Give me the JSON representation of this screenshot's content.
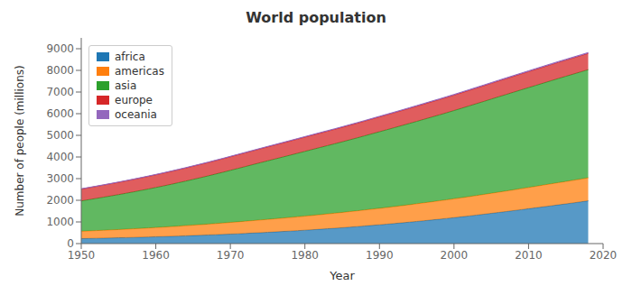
{
  "chart_data": {
    "type": "area",
    "title": "World population",
    "x_label": "Year",
    "y_label": "Number of people (millions)",
    "x": [
      1950,
      1951,
      1952,
      1953,
      1954,
      1955,
      1956,
      1957,
      1958,
      1959,
      1960,
      1961,
      1962,
      1963,
      1964,
      1965,
      1966,
      1967,
      1968,
      1969,
      1970,
      1971,
      1972,
      1973,
      1974,
      1975,
      1976,
      1977,
      1978,
      1979,
      1980,
      1981,
      1982,
      1983,
      1984,
      1985,
      1986,
      1987,
      1988,
      1989,
      1990,
      1991,
      1992,
      1993,
      1994,
      1995,
      1996,
      1997,
      1998,
      1999,
      2000,
      2001,
      2002,
      2003,
      2004,
      2005,
      2006,
      2007,
      2008,
      2009,
      2010,
      2011,
      2012,
      2013,
      2014,
      2015,
      2016,
      2017,
      2018
    ],
    "series": [
      {
        "name": "africa",
        "color": "#1f77b4",
        "values": [
          229,
          237,
          244,
          252,
          260,
          268,
          276,
          285,
          294,
          304,
          314,
          324,
          335,
          346,
          358,
          370,
          383,
          396,
          409,
          423,
          438,
          453,
          469,
          486,
          503,
          521,
          539,
          558,
          577,
          597,
          618,
          640,
          662,
          685,
          708,
          733,
          759,
          785,
          812,
          840,
          868,
          897,
          927,
          958,
          990,
          1023,
          1056,
          1090,
          1125,
          1161,
          1198,
          1236,
          1275,
          1315,
          1355,
          1396,
          1438,
          1480,
          1523,
          1566,
          1610,
          1654,
          1699,
          1743,
          1788,
          1833,
          1880,
          1927,
          1975
        ]
      },
      {
        "name": "americas",
        "color": "#ff7f0e",
        "values": [
          339,
          347,
          355,
          363,
          371,
          380,
          389,
          398,
          408,
          418,
          428,
          439,
          449,
          460,
          471,
          483,
          494,
          505,
          517,
          528,
          540,
          552,
          563,
          575,
          586,
          597,
          608,
          619,
          630,
          641,
          652,
          663,
          674,
          685,
          695,
          706,
          717,
          728,
          740,
          751,
          762,
          773,
          784,
          795,
          806,
          817,
          828,
          839,
          850,
          861,
          872,
          883,
          894,
          905,
          916,
          927,
          938,
          949,
          961,
          972,
          983,
          994,
          1005,
          1016,
          1027,
          1036,
          1045,
          1054,
          1063
        ]
      },
      {
        "name": "asia",
        "color": "#2ca02c",
        "values": [
          1402,
          1444,
          1486,
          1528,
          1571,
          1614,
          1659,
          1705,
          1752,
          1799,
          1848,
          1898,
          1950,
          2003,
          2056,
          2111,
          2167,
          2224,
          2283,
          2343,
          2404,
          2464,
          2525,
          2585,
          2645,
          2703,
          2761,
          2818,
          2875,
          2932,
          2988,
          3044,
          3099,
          3153,
          3207,
          3260,
          3315,
          3369,
          3424,
          3480,
          3536,
          3590,
          3644,
          3698,
          3751,
          3805,
          3859,
          3914,
          3966,
          4020,
          4075,
          4130,
          4186,
          4241,
          4296,
          4352,
          4406,
          4458,
          4510,
          4561,
          4611,
          4661,
          4710,
          4760,
          4809,
          4857,
          4903,
          4949,
          4994
        ]
      },
      {
        "name": "europe",
        "color": "#d62728",
        "values": [
          547,
          551,
          555,
          559,
          563,
          567,
          571,
          575,
          579,
          583,
          587,
          591,
          596,
          600,
          604,
          609,
          613,
          617,
          621,
          624,
          628,
          632,
          635,
          638,
          641,
          644,
          647,
          650,
          653,
          656,
          659,
          661,
          664,
          666,
          669,
          671,
          674,
          677,
          679,
          682,
          685,
          688,
          690,
          693,
          696,
          699,
          702,
          705,
          707,
          709,
          712,
          715,
          717,
          720,
          722,
          725,
          728,
          730,
          733,
          735,
          738,
          740,
          742,
          744,
          745,
          746,
          747,
          748,
          749
        ]
      },
      {
        "name": "oceania",
        "color": "#9467bd",
        "values": [
          13,
          13,
          13,
          14,
          14,
          14,
          15,
          15,
          15,
          16,
          16,
          16,
          17,
          17,
          17,
          18,
          18,
          19,
          19,
          19,
          20,
          20,
          21,
          21,
          21,
          22,
          22,
          23,
          23,
          23,
          24,
          24,
          25,
          25,
          25,
          26,
          26,
          27,
          27,
          27,
          28,
          28,
          29,
          29,
          30,
          30,
          31,
          31,
          32,
          32,
          32,
          33,
          33,
          34,
          34,
          35,
          35,
          36,
          36,
          37,
          37,
          38,
          38,
          39,
          39,
          39,
          40,
          40,
          41
        ]
      }
    ],
    "stacked": true,
    "xlim": [
      1950,
      2020
    ],
    "xticks": [
      1950,
      1960,
      1970,
      1980,
      1990,
      2000,
      2010,
      2020
    ],
    "ylim": [
      0,
      9500
    ],
    "yticks": [
      0,
      1000,
      2000,
      3000,
      4000,
      5000,
      6000,
      7000,
      8000,
      9000
    ],
    "grid": false,
    "legend": "upper left"
  }
}
